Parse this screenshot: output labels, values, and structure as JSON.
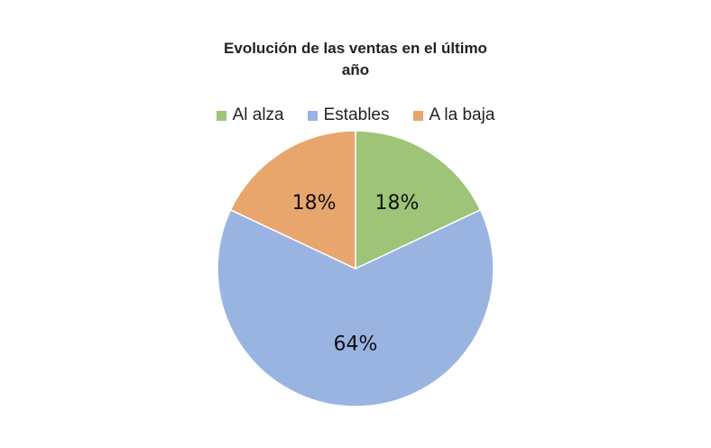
{
  "chart_data": {
    "type": "pie",
    "title": "Evolución de las ventas en el último año",
    "legend_position": "top",
    "categories": [
      "Al alza",
      "Estables",
      "A la baja"
    ],
    "values": [
      18,
      64,
      18
    ],
    "labels": [
      "18%",
      "64%",
      "18%"
    ],
    "colors": [
      "#9dc477",
      "#9ab4e2",
      "#e8a56c"
    ]
  }
}
